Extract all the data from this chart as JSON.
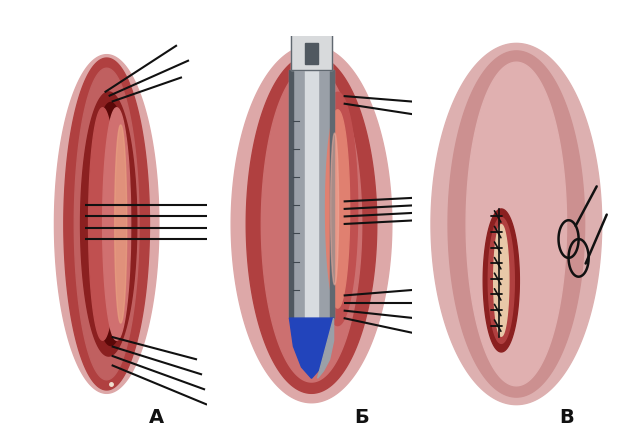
{
  "panel_labels": [
    "А",
    "Б",
    "В"
  ],
  "panel_label_fontsize": 14,
  "panel_label_weight": "bold",
  "background_color": "#ffffff",
  "figsize": [
    6.23,
    4.48
  ],
  "dpi": 100,
  "esoph_outer": "#d4a0a0",
  "esoph_mid": "#c07070",
  "esoph_inner": "#b05050",
  "esoph_dark": "#8b3030",
  "esoph_light": "#e8c0c0",
  "esoph_pink_light": "#e0b0b0",
  "wound_border": "#7a1a1a",
  "wound_dark": "#3a0808",
  "wound_lip": "#9b2020",
  "wound_pale": "#e8c0a0",
  "suture_color": "#111111",
  "device_gray_dark": "#606870",
  "device_gray_mid": "#9aa0a8",
  "device_gray_light": "#c8ccd0",
  "device_gray_highlight": "#e0e2e4",
  "device_handle": "#d0d4d8",
  "device_tip": "#909498",
  "balloon_outer": "#c85050",
  "balloon_inner": "#e09090",
  "balloon_blue": "#2244bb",
  "panel_A_sutures_upper": [
    [
      [
        0.48,
        0.8
      ],
      [
        0.72,
        0.89
      ]
    ],
    [
      [
        0.48,
        0.77
      ],
      [
        0.76,
        0.84
      ]
    ],
    [
      [
        0.48,
        0.74
      ],
      [
        0.72,
        0.78
      ]
    ]
  ],
  "panel_A_sutures_mid": [
    [
      [
        0.36,
        0.55
      ],
      [
        0.08,
        0.55
      ]
    ],
    [
      [
        0.36,
        0.52
      ],
      [
        0.08,
        0.52
      ]
    ],
    [
      [
        0.36,
        0.49
      ],
      [
        0.08,
        0.49
      ]
    ],
    [
      [
        0.36,
        0.46
      ],
      [
        0.08,
        0.46
      ]
    ]
  ],
  "panel_A_sutures_lower": [
    [
      [
        0.48,
        0.3
      ],
      [
        0.76,
        0.22
      ]
    ],
    [
      [
        0.48,
        0.27
      ],
      [
        0.8,
        0.17
      ]
    ],
    [
      [
        0.48,
        0.24
      ],
      [
        0.82,
        0.13
      ]
    ],
    [
      [
        0.48,
        0.21
      ],
      [
        0.84,
        0.1
      ]
    ]
  ],
  "panel_B_sutures_upper": [
    [
      [
        0.6,
        0.68
      ],
      [
        0.9,
        0.66
      ]
    ],
    [
      [
        0.6,
        0.65
      ],
      [
        0.95,
        0.62
      ]
    ]
  ],
  "panel_B_sutures_mid": [
    [
      [
        0.6,
        0.54
      ],
      [
        0.9,
        0.54
      ]
    ],
    [
      [
        0.6,
        0.51
      ],
      [
        0.9,
        0.51
      ]
    ],
    [
      [
        0.6,
        0.48
      ],
      [
        0.9,
        0.48
      ]
    ],
    [
      [
        0.6,
        0.45
      ],
      [
        0.9,
        0.45
      ]
    ]
  ],
  "panel_B_sutures_lower": [
    [
      [
        0.6,
        0.38
      ],
      [
        0.88,
        0.33
      ]
    ],
    [
      [
        0.6,
        0.35
      ],
      [
        0.88,
        0.29
      ]
    ],
    [
      [
        0.6,
        0.32
      ],
      [
        0.88,
        0.26
      ]
    ],
    [
      [
        0.6,
        0.29
      ],
      [
        0.88,
        0.22
      ]
    ]
  ]
}
